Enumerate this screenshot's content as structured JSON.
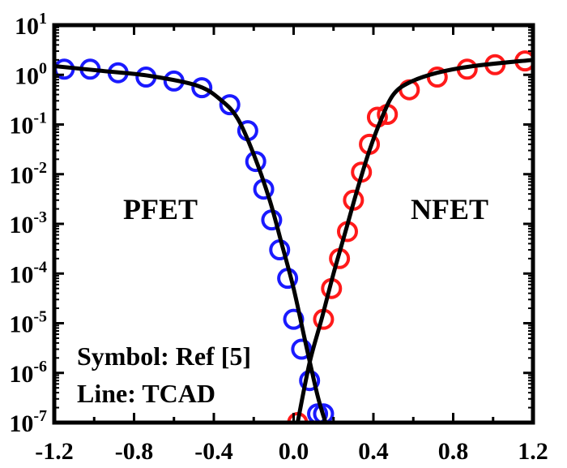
{
  "chart_data": {
    "type": "scatter",
    "title": "",
    "xlabel": "",
    "ylabel": "",
    "y_scale": "log",
    "xlim": [
      -1.2,
      1.2
    ],
    "ylim_exp": [
      -7,
      1
    ],
    "x_ticks": [
      "-1.2",
      "-0.8",
      "-0.4",
      "0.0",
      "0.4",
      "0.8",
      "1.2"
    ],
    "y_tick_mantissa": "10",
    "y_tick_exponents": [
      "1",
      "0",
      "-1",
      "-2",
      "-3",
      "-4",
      "-5",
      "-6",
      "-7"
    ],
    "grid": false,
    "series": [
      {
        "label": "PFET",
        "marker": "open-circle",
        "color": "#1a1aff",
        "x": [
          -1.15,
          -1.02,
          -0.88,
          -0.74,
          -0.6,
          -0.46,
          -0.32,
          -0.23,
          -0.19,
          -0.15,
          -0.11,
          -0.07,
          -0.03,
          0.0,
          0.04,
          0.08,
          0.12,
          0.15
        ],
        "y": [
          1.3,
          1.3,
          1.1,
          0.9,
          0.75,
          0.55,
          0.25,
          0.075,
          0.018,
          0.005,
          0.0012,
          0.0003,
          8e-05,
          1.2e-05,
          3e-06,
          7e-07,
          1.5e-07,
          1.5e-07
        ]
      },
      {
        "label": "NFET",
        "marker": "open-circle",
        "color": "#ff1a1a",
        "x": [
          0.02,
          0.15,
          0.19,
          0.23,
          0.27,
          0.3,
          0.34,
          0.38,
          0.42,
          0.47,
          0.58,
          0.72,
          0.87,
          1.01,
          1.16
        ],
        "y": [
          1e-07,
          1.2e-05,
          5e-05,
          0.0002,
          0.0007,
          0.003,
          0.011,
          0.04,
          0.14,
          0.16,
          0.5,
          0.9,
          1.3,
          1.6,
          1.9
        ]
      },
      {
        "label": "PFET TCAD",
        "marker": "line",
        "color": "#000000",
        "x": [
          -1.2,
          -0.96,
          -0.72,
          -0.48,
          -0.36,
          -0.28,
          -0.2,
          -0.12,
          -0.06,
          0.0,
          0.06,
          0.12,
          0.16
        ],
        "y": [
          1.5,
          1.2,
          0.95,
          0.6,
          0.3,
          0.13,
          0.025,
          0.003,
          0.0004,
          5e-05,
          4e-06,
          3.5e-07,
          1e-07
        ]
      },
      {
        "label": "NFET TCAD",
        "marker": "line",
        "color": "#000000",
        "x": [
          0.02,
          0.08,
          0.14,
          0.2,
          0.26,
          0.32,
          0.38,
          0.44,
          0.5,
          0.58,
          0.72,
          0.9,
          1.2
        ],
        "y": [
          1e-07,
          1.6e-06,
          1.2e-05,
          0.0001,
          0.0007,
          0.005,
          0.03,
          0.13,
          0.4,
          0.7,
          1.1,
          1.5,
          2.0
        ]
      }
    ],
    "annotations": {
      "pfet": "PFET",
      "nfet": "NFET",
      "symbol": "Symbol: Ref [5]",
      "line": "Line: TCAD"
    }
  }
}
